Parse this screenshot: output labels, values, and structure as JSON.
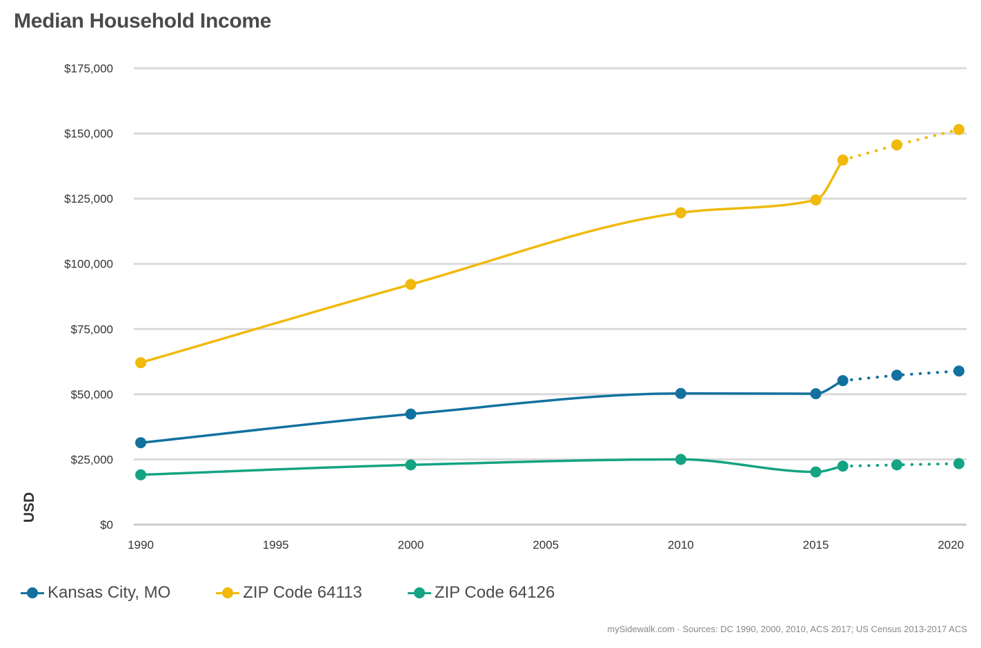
{
  "title": "Median Household Income",
  "source": "mySidewalk.com · Sources: DC 1990, 2000, 2010, ACS 2017; US Census 2013-2017 ACS",
  "colors": {
    "grid": "#d9d9d9",
    "axis": "#cccccc",
    "kansas_city": "#12719e",
    "zip_64113": "#f0b90b",
    "zip_64126": "#14a383"
  },
  "chart_data": {
    "type": "line",
    "title": "Median Household Income",
    "xlabel": "",
    "ylabel": "USD",
    "xlim": [
      1990,
      2020.5
    ],
    "ylim": [
      0,
      175000
    ],
    "x_ticks": [
      1990,
      1995,
      2000,
      2005,
      2010,
      2015,
      2020
    ],
    "x_tick_labels": [
      "1990",
      "1995",
      "2000",
      "2005",
      "2010",
      "2015",
      "2020"
    ],
    "y_ticks": [
      0,
      25000,
      50000,
      75000,
      100000,
      125000,
      150000,
      175000
    ],
    "y_tick_labels": [
      "$0",
      "$25,000",
      "$50,000",
      "$75,000",
      "$100,000",
      "$125,000",
      "$150,000",
      "$175,000"
    ],
    "grid": true,
    "legend_position": "bottom-left",
    "series": [
      {
        "key": "kansas_city",
        "name": "Kansas City, MO",
        "color": "#12719e",
        "x": [
          1990,
          2000,
          2010,
          2015,
          2016,
          2018,
          2020.3
        ],
        "values": [
          31400,
          42400,
          50300,
          50200,
          55200,
          57300,
          58900
        ],
        "projected_from_index": 4
      },
      {
        "key": "zip_64113",
        "name": "ZIP Code 64113",
        "color": "#f0b90b",
        "x": [
          1990,
          2000,
          2010,
          2015,
          2016,
          2018,
          2020.3
        ],
        "values": [
          62100,
          92100,
          119600,
          124500,
          139800,
          145600,
          151500
        ],
        "projected_from_index": 4
      },
      {
        "key": "zip_64126",
        "name": "ZIP Code 64126",
        "color": "#14a383",
        "x": [
          1990,
          2000,
          2010,
          2015,
          2016,
          2018,
          2020.3
        ],
        "values": [
          19100,
          22900,
          25000,
          20200,
          22400,
          22900,
          23400
        ],
        "projected_from_index": 4
      }
    ]
  }
}
